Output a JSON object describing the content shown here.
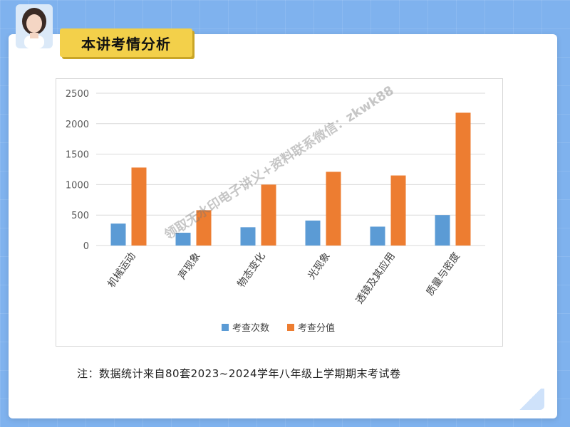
{
  "header": {
    "title": "本讲考情分析"
  },
  "note": "注：数据统计来自80套2023~2024学年八年级上学期期末考试卷",
  "watermark": "领取无水印电子讲义+资料联系微信：zkwk88",
  "colors": {
    "series_blue": "#5b9bd5",
    "series_orange": "#ed7d31",
    "banner": "#f3d04a"
  },
  "chart_data": {
    "type": "bar",
    "categories": [
      "机械运动",
      "声现象",
      "物态变化",
      "光现象",
      "透镜及其应用",
      "质量与密度"
    ],
    "series": [
      {
        "name": "考查次数",
        "values": [
          360,
          210,
          300,
          410,
          310,
          500
        ]
      },
      {
        "name": "考查分值",
        "values": [
          1280,
          580,
          1000,
          1210,
          1150,
          2180
        ]
      }
    ],
    "yticks": [
      "0",
      "500",
      "1000",
      "1500",
      "2000",
      "2500"
    ],
    "ylim": [
      0,
      2500
    ],
    "grid": true,
    "legend": "bottom"
  }
}
